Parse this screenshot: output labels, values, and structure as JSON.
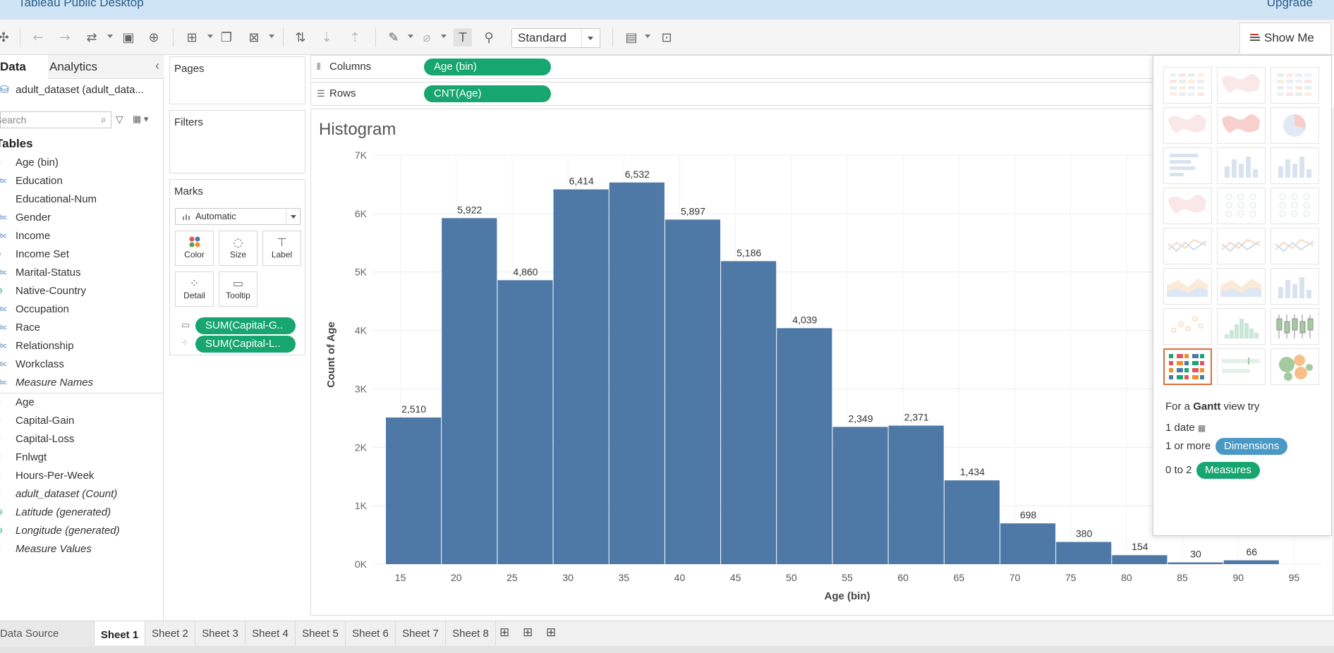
{
  "window": {
    "title": "Tableau Public Desktop",
    "upgrade_label": "Upgrade"
  },
  "toolbar": {
    "fit_value": "Standard",
    "show_me_label": "Show Me",
    "icons": [
      "tableau-logo-icon",
      "undo-icon",
      "redo-icon",
      "replay-icon",
      "save-icon",
      "new-datasource-icon",
      "new-worksheet-icon",
      "duplicate-icon",
      "clear-icon",
      "swap-icon",
      "sort-asc-icon",
      "sort-desc-icon",
      "highlight-icon",
      "group-icon",
      "show-labels-icon",
      "pin-icon",
      "show-cards-icon",
      "presentation-icon"
    ]
  },
  "data_pane": {
    "tab_data": "Data",
    "tab_analytics": "Analytics",
    "datasource": "adult_dataset (adult_data...",
    "search_placeholder": "Search",
    "tables_header": "Tables",
    "dimensions": [
      {
        "type": "bin",
        "name": "Age (bin)",
        "italic": false
      },
      {
        "type": "Abc",
        "name": "Education",
        "italic": false
      },
      {
        "type": "#",
        "name": "Educational-Num",
        "italic": false
      },
      {
        "type": "Abc",
        "name": "Gender",
        "italic": false
      },
      {
        "type": "Abc",
        "name": "Income",
        "italic": false
      },
      {
        "type": "set",
        "name": "Income Set",
        "italic": false
      },
      {
        "type": "Abc",
        "name": "Marital-Status",
        "italic": false
      },
      {
        "type": "geo",
        "name": "Native-Country",
        "italic": false
      },
      {
        "type": "Abc",
        "name": "Occupation",
        "italic": false
      },
      {
        "type": "Abc",
        "name": "Race",
        "italic": false
      },
      {
        "type": "Abc",
        "name": "Relationship",
        "italic": false
      },
      {
        "type": "Abc",
        "name": "Workclass",
        "italic": false
      },
      {
        "type": "Abc",
        "name": "Measure Names",
        "italic": true
      }
    ],
    "measures": [
      {
        "type": "#",
        "name": "Age",
        "italic": false
      },
      {
        "type": "#",
        "name": "Capital-Gain",
        "italic": false
      },
      {
        "type": "#",
        "name": "Capital-Loss",
        "italic": false
      },
      {
        "type": "#",
        "name": "Fnlwgt",
        "italic": false
      },
      {
        "type": "#",
        "name": "Hours-Per-Week",
        "italic": false
      },
      {
        "type": "#",
        "name": "adult_dataset (Count)",
        "italic": true
      },
      {
        "type": "geo",
        "name": "Latitude (generated)",
        "italic": true
      },
      {
        "type": "geo",
        "name": "Longitude (generated)",
        "italic": true
      },
      {
        "type": "#",
        "name": "Measure Values",
        "italic": true
      }
    ]
  },
  "cards": {
    "pages": "Pages",
    "filters": "Filters",
    "marks": "Marks",
    "mark_type": "Automatic",
    "buttons": [
      "Color",
      "Size",
      "Label",
      "Detail",
      "Tooltip"
    ],
    "pills": [
      "SUM(Capital-G..",
      "SUM(Capital-L.."
    ]
  },
  "shelves": {
    "columns_label": "Columns",
    "columns_pill": "Age (bin)",
    "rows_label": "Rows",
    "rows_pill": "CNT(Age)"
  },
  "chart_data": {
    "type": "bar",
    "title": "Histogram",
    "xlabel": "Age (bin)",
    "ylabel": "Count of Age",
    "x_bins": [
      15,
      20,
      25,
      30,
      35,
      40,
      45,
      50,
      55,
      60,
      65,
      70,
      75,
      80,
      85,
      90
    ],
    "values": [
      2510,
      5922,
      4860,
      6414,
      6532,
      5897,
      5186,
      4039,
      2349,
      2371,
      1434,
      698,
      380,
      154,
      30,
      66
    ],
    "value_labels": [
      "2,510",
      "5,922",
      "4,860",
      "6,414",
      "6,532",
      "5,897",
      "5,186",
      "4,039",
      "2,349",
      "2,371",
      "1,434",
      "698",
      "380",
      "154",
      "30",
      "66"
    ],
    "x_ticks": [
      "15",
      "20",
      "25",
      "30",
      "35",
      "40",
      "45",
      "50",
      "55",
      "60",
      "65",
      "70",
      "75",
      "80",
      "85",
      "90",
      "95"
    ],
    "y_ticks": [
      "0K",
      "1K",
      "2K",
      "3K",
      "4K",
      "5K",
      "6K",
      "7K"
    ],
    "xlim": [
      12.5,
      97.5
    ],
    "ylim": [
      0,
      7000
    ],
    "bar_color": "#4e79a7",
    "grid": true
  },
  "show_me": {
    "hint_prefix": "For a ",
    "hint_chart": "Gantt",
    "hint_suffix": " view try",
    "req1": "1 date",
    "req2_prefix": "1 or more",
    "req2_pill": "Dimensions",
    "req3_prefix": "0 to 2",
    "req3_pill": "Measures",
    "dimension_color": "#4a98c4",
    "measure_color": "#17a66f",
    "charts": [
      "text-table",
      "heat-map",
      "highlight-table",
      "symbol-map",
      "filled-map",
      "pie-chart",
      "horizontal-bars",
      "stacked-bars",
      "side-by-side-bars",
      "treemap",
      "circle-views",
      "side-by-side-circles",
      "lines-continuous",
      "lines-discrete",
      "dual-lines",
      "area-continuous",
      "area-discrete",
      "dual-combination",
      "scatter-plot",
      "histogram",
      "box-and-whisker",
      "gantt-chart",
      "bullet-graph",
      "packed-bubbles"
    ],
    "selected": "gantt-chart"
  },
  "sheet_tabs": {
    "data_source": "Data Source",
    "sheets": [
      "Sheet 1",
      "Sheet 2",
      "Sheet 3",
      "Sheet 4",
      "Sheet 5",
      "Sheet 6",
      "Sheet 7",
      "Sheet 8"
    ],
    "active": "Sheet 1"
  }
}
